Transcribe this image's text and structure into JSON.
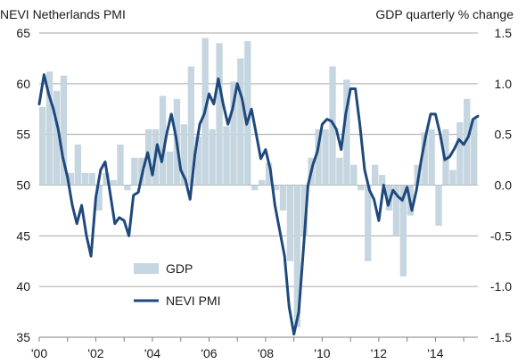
{
  "chart_data": {
    "type": "bar+line",
    "title_left": "NEVI Netherlands PMI",
    "title_right": "GDP quarterly % change",
    "x_ticks": [
      "'00",
      "'02",
      "'04",
      "'06",
      "'08",
      "'10",
      "'12",
      "'14"
    ],
    "x_range": [
      2000.0,
      2015.5
    ],
    "y_left": {
      "range": [
        35,
        65
      ],
      "ticks": [
        "35",
        "40",
        "45",
        "50",
        "55",
        "60",
        "65"
      ]
    },
    "y_right": {
      "range": [
        -1.5,
        1.5
      ],
      "ticks": [
        "-1.5",
        "-1.0",
        "-0.5",
        "0.0",
        "0.5",
        "1.0",
        "1.5"
      ]
    },
    "grid": true,
    "legend": [
      "GDP",
      "NEVI PMI"
    ],
    "colors": {
      "gdp": "#c5d6e0",
      "pmi": "#1f497d",
      "grid": "#a6a6a6",
      "axis": "#808080"
    },
    "series": [
      {
        "name": "GDP",
        "axis": "right",
        "type": "bar",
        "x": [
          2000.0,
          2000.25,
          2000.5,
          2000.75,
          2001.0,
          2001.25,
          2001.5,
          2001.75,
          2002.0,
          2002.25,
          2002.5,
          2002.75,
          2003.0,
          2003.25,
          2003.5,
          2003.75,
          2004.0,
          2004.25,
          2004.5,
          2004.75,
          2005.0,
          2005.25,
          2005.5,
          2005.75,
          2006.0,
          2006.25,
          2006.5,
          2006.75,
          2007.0,
          2007.25,
          2007.5,
          2007.75,
          2008.0,
          2008.25,
          2008.5,
          2008.75,
          2009.0,
          2009.25,
          2009.5,
          2009.75,
          2010.0,
          2010.25,
          2010.5,
          2010.75,
          2011.0,
          2011.25,
          2011.5,
          2011.75,
          2012.0,
          2012.25,
          2012.5,
          2012.75,
          2013.0,
          2013.25,
          2013.5,
          2013.75,
          2014.0,
          2014.25,
          2014.5,
          2014.75,
          2015.0,
          2015.25
        ],
        "values": [
          0.77,
          1.12,
          0.93,
          1.08,
          0.12,
          0.4,
          0.12,
          0.12,
          -0.25,
          0.12,
          0.05,
          0.4,
          -0.05,
          0.27,
          0.27,
          0.55,
          0.55,
          0.88,
          0.33,
          0.85,
          0.6,
          1.17,
          0.48,
          1.45,
          0.55,
          1.4,
          0.58,
          1.02,
          1.25,
          1.42,
          -0.05,
          0.05,
          0.22,
          -0.05,
          -0.25,
          -0.75,
          -1.4,
          -0.5,
          0.27,
          0.55,
          0.55,
          1.17,
          0.27,
          1.04,
          0.2,
          -0.05,
          -0.75,
          0.2,
          0.1,
          -0.25,
          -0.5,
          -0.9,
          -0.3,
          0.2,
          0.52,
          0.55,
          -0.4,
          0.55,
          0.15,
          0.62,
          0.85,
          0.65
        ]
      },
      {
        "name": "NEVI PMI",
        "axis": "left",
        "type": "line",
        "x": [
          2000.0,
          2000.17,
          2000.33,
          2000.5,
          2000.67,
          2000.83,
          2001.0,
          2001.17,
          2001.33,
          2001.5,
          2001.67,
          2001.83,
          2002.0,
          2002.17,
          2002.33,
          2002.5,
          2002.67,
          2002.83,
          2003.0,
          2003.17,
          2003.33,
          2003.5,
          2003.67,
          2003.83,
          2004.0,
          2004.17,
          2004.33,
          2004.5,
          2004.67,
          2004.83,
          2005.0,
          2005.17,
          2005.33,
          2005.5,
          2005.67,
          2005.83,
          2006.0,
          2006.17,
          2006.33,
          2006.5,
          2006.67,
          2006.83,
          2007.0,
          2007.17,
          2007.33,
          2007.5,
          2007.67,
          2007.83,
          2008.0,
          2008.17,
          2008.33,
          2008.5,
          2008.67,
          2008.83,
          2009.0,
          2009.17,
          2009.33,
          2009.5,
          2009.67,
          2009.83,
          2010.0,
          2010.17,
          2010.33,
          2010.5,
          2010.67,
          2010.83,
          2011.0,
          2011.17,
          2011.33,
          2011.5,
          2011.67,
          2011.83,
          2012.0,
          2012.17,
          2012.33,
          2012.5,
          2012.67,
          2012.83,
          2013.0,
          2013.17,
          2013.33,
          2013.5,
          2013.67,
          2013.83,
          2014.0,
          2014.17,
          2014.33,
          2014.5,
          2014.67,
          2014.83,
          2015.0,
          2015.17,
          2015.33,
          2015.5
        ],
        "values": [
          58.0,
          60.9,
          59.0,
          57.5,
          55.5,
          52.8,
          50.8,
          48.0,
          46.2,
          48.0,
          45.0,
          43.0,
          48.8,
          51.5,
          52.3,
          49.3,
          46.2,
          46.8,
          46.5,
          45.0,
          49.0,
          49.3,
          51.5,
          53.2,
          51.0,
          54.0,
          52.3,
          55.0,
          57.0,
          54.8,
          51.5,
          50.5,
          48.6,
          53.0,
          56.0,
          57.0,
          59.0,
          58.0,
          60.5,
          58.0,
          56.0,
          57.5,
          60.0,
          58.5,
          56.0,
          57.5,
          55.0,
          52.6,
          53.5,
          51.5,
          48.0,
          45.5,
          43.0,
          38.0,
          35.3,
          37.5,
          43.5,
          50.0,
          52.0,
          53.3,
          56.0,
          56.5,
          56.3,
          55.5,
          53.5,
          57.0,
          59.5,
          59.5,
          56.0,
          51.5,
          49.5,
          48.6,
          46.5,
          50.0,
          48.0,
          49.5,
          48.9,
          48.5,
          49.8,
          47.5,
          49.5,
          52.5,
          55.0,
          57.0,
          57.0,
          55.0,
          52.5,
          52.8,
          53.6,
          54.5,
          54.0,
          54.8,
          56.5,
          56.8
        ]
      }
    ]
  }
}
